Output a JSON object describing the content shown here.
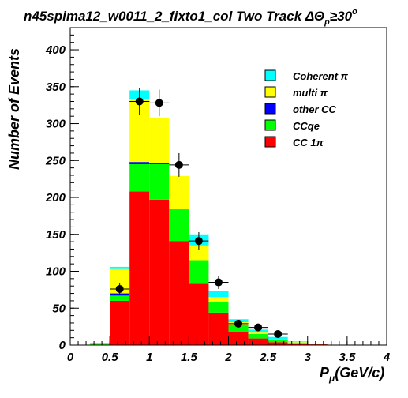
{
  "chart_data": {
    "type": "bar",
    "title": "n45spima12_w0011_2_fixto1_col Two Track ΔΘ",
    "title_sub": "p",
    "title_tail": "≥30",
    "title_sup": "o",
    "xlabel": "P",
    "xlabel_sub": "μ",
    "xlabel_tail": "(GeV/c)",
    "ylabel": "Number of Events",
    "xlim": [
      0,
      4
    ],
    "ylim": [
      0,
      430
    ],
    "x_ticks": [
      "0",
      "0.5",
      "1",
      "1.5",
      "2",
      "2.5",
      "3",
      "3.5",
      "4"
    ],
    "y_ticks": [
      "0",
      "50",
      "100",
      "150",
      "200",
      "250",
      "300",
      "350",
      "400"
    ],
    "legend_position": "top-right",
    "bin_edges": [
      0.25,
      0.5,
      0.75,
      1.0,
      1.25,
      1.5,
      1.75,
      2.0,
      2.25,
      2.5,
      2.75,
      3.0,
      3.25,
      3.5,
      3.75
    ],
    "stack_order": [
      "CC 1π",
      "CCqe",
      "other CC",
      "multi π",
      "Coherent π"
    ],
    "series": [
      {
        "name": "Coherent π",
        "color": "#00ffff",
        "values": [
          1,
          3,
          12,
          0,
          0,
          15,
          8,
          4,
          4,
          3,
          1,
          0,
          0,
          0
        ]
      },
      {
        "name": "multi π",
        "color": "#ffff00",
        "values": [
          1,
          33,
          85,
          62,
          45,
          20,
          6,
          3,
          2,
          1,
          1,
          0,
          0,
          0
        ]
      },
      {
        "name": "other CC",
        "color": "#0000ff",
        "values": [
          0,
          3,
          3,
          1,
          0,
          0,
          0,
          0,
          0,
          0,
          0,
          0,
          0,
          0
        ]
      },
      {
        "name": "CCqe",
        "color": "#00ff00",
        "values": [
          1,
          7,
          37,
          48,
          43,
          32,
          15,
          10,
          6,
          3,
          1,
          1,
          0,
          0
        ]
      },
      {
        "name": "CC 1π",
        "color": "#ff0000",
        "values": [
          0,
          60,
          208,
          197,
          141,
          83,
          44,
          18,
          9,
          4,
          2,
          1,
          0,
          0
        ]
      }
    ],
    "data_points": {
      "x": [
        0.625,
        0.875,
        1.125,
        1.375,
        1.625,
        1.875,
        2.125,
        2.375,
        2.625
      ],
      "y": [
        76,
        330,
        328,
        244,
        141,
        85,
        29,
        24,
        15
      ],
      "y_err": [
        8,
        18,
        18,
        16,
        12,
        9,
        5,
        5,
        4
      ],
      "x_err": 0.125
    }
  }
}
